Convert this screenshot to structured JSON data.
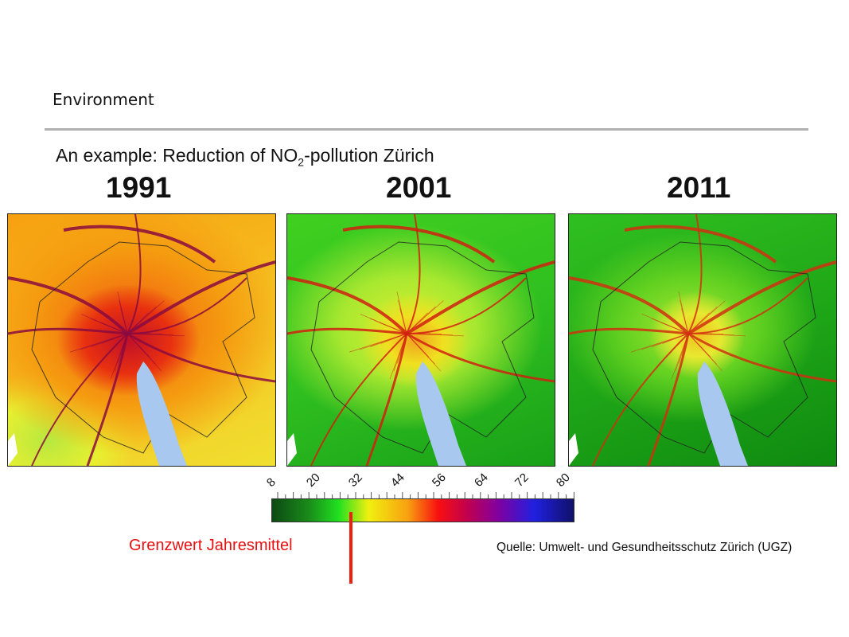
{
  "slide": {
    "section": "Environment",
    "subtitle_prefix": "An example: Reduction of NO",
    "subtitle_sub": "2",
    "subtitle_suffix": "-pollution Zürich",
    "maps": [
      {
        "year": "1991"
      },
      {
        "year": "2001"
      },
      {
        "year": "2011"
      }
    ],
    "colorbar": {
      "ticks": [
        "8",
        "20",
        "32",
        "44",
        "56",
        "64",
        "72",
        "80"
      ],
      "colors": [
        "#0b4a12",
        "#20e020",
        "#f0f010",
        "#f8a010",
        "#f81010",
        "#8000a0",
        "#2020e0",
        "#10106a"
      ]
    },
    "limit_label": "Grenzwert Jahresmittel",
    "limit_color": "#e81010",
    "source": "Quelle: Umwelt- und Gesundheitsschutz Zürich (UGZ)"
  }
}
